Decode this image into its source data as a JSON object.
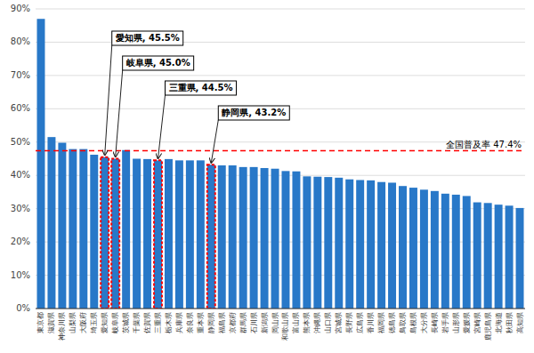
{
  "chart_data": {
    "type": "bar",
    "categories": [
      "東京都",
      "滋賀県",
      "神奈川県",
      "山梨県",
      "大阪府",
      "埼玉県",
      "愛知県",
      "岐阜県",
      "茨城県",
      "千葉県",
      "佐賀県",
      "三重県",
      "栃木県",
      "兵庫県",
      "奈良県",
      "重本県",
      "静岡県",
      "福島県",
      "京都府",
      "群馬県",
      "石川県",
      "新潟県",
      "岡山県",
      "和歌山県",
      "富山県",
      "熊本県",
      "沖縄県",
      "山口県",
      "宮城県",
      "長野県",
      "広島県",
      "香川県",
      "福岡県",
      "徳島県",
      "鳥取県",
      "島根県",
      "大分県",
      "長崎県",
      "岩手県",
      "山形県",
      "愛媛県",
      "宮崎県",
      "鹿児島県",
      "北海道",
      "秋田県",
      "高知県"
    ],
    "values": [
      87.0,
      51.5,
      49.8,
      47.9,
      47.9,
      46.2,
      45.5,
      45.0,
      47.6,
      45.0,
      44.9,
      44.5,
      44.9,
      44.5,
      44.5,
      44.5,
      43.2,
      43.0,
      43.0,
      42.5,
      42.5,
      42.2,
      42.0,
      41.3,
      41.2,
      39.7,
      39.6,
      39.5,
      39.3,
      38.8,
      38.6,
      38.5,
      38.0,
      37.8,
      36.8,
      36.3,
      35.7,
      35.3,
      34.5,
      34.2,
      33.8,
      31.9,
      31.7,
      31.2,
      30.9,
      30.2
    ],
    "color": "#2878c8",
    "reference_line": {
      "value": 47.4,
      "label": "全国普及率 47.4%",
      "color": "#ff0000"
    },
    "annotations": [
      {
        "text": "愛知県, 45.5%",
        "category": "愛知県",
        "color": "#ff0000"
      },
      {
        "text": "岐阜県, 45.0%",
        "category": "岐阜県",
        "color": "#ff0000"
      },
      {
        "text": "三重県, 44.5%",
        "category": "三重県",
        "color": "#ff0000"
      },
      {
        "text": "静岡県, 43.2%",
        "category": "静岡県",
        "color": "#ff0000"
      }
    ],
    "ylim": [
      0,
      90
    ],
    "yticks": [
      {
        "value": 0,
        "label": "0%"
      },
      {
        "value": 10,
        "label": "10%"
      },
      {
        "value": 20,
        "label": "20%"
      },
      {
        "value": 30,
        "label": "30%"
      },
      {
        "value": 40,
        "label": "40%"
      },
      {
        "value": 50,
        "label": "50%"
      },
      {
        "value": 60,
        "label": "60%"
      },
      {
        "value": 70,
        "label": "70%"
      },
      {
        "value": 80,
        "label": "80%"
      },
      {
        "value": 90,
        "label": "90%"
      }
    ],
    "grid": true
  }
}
